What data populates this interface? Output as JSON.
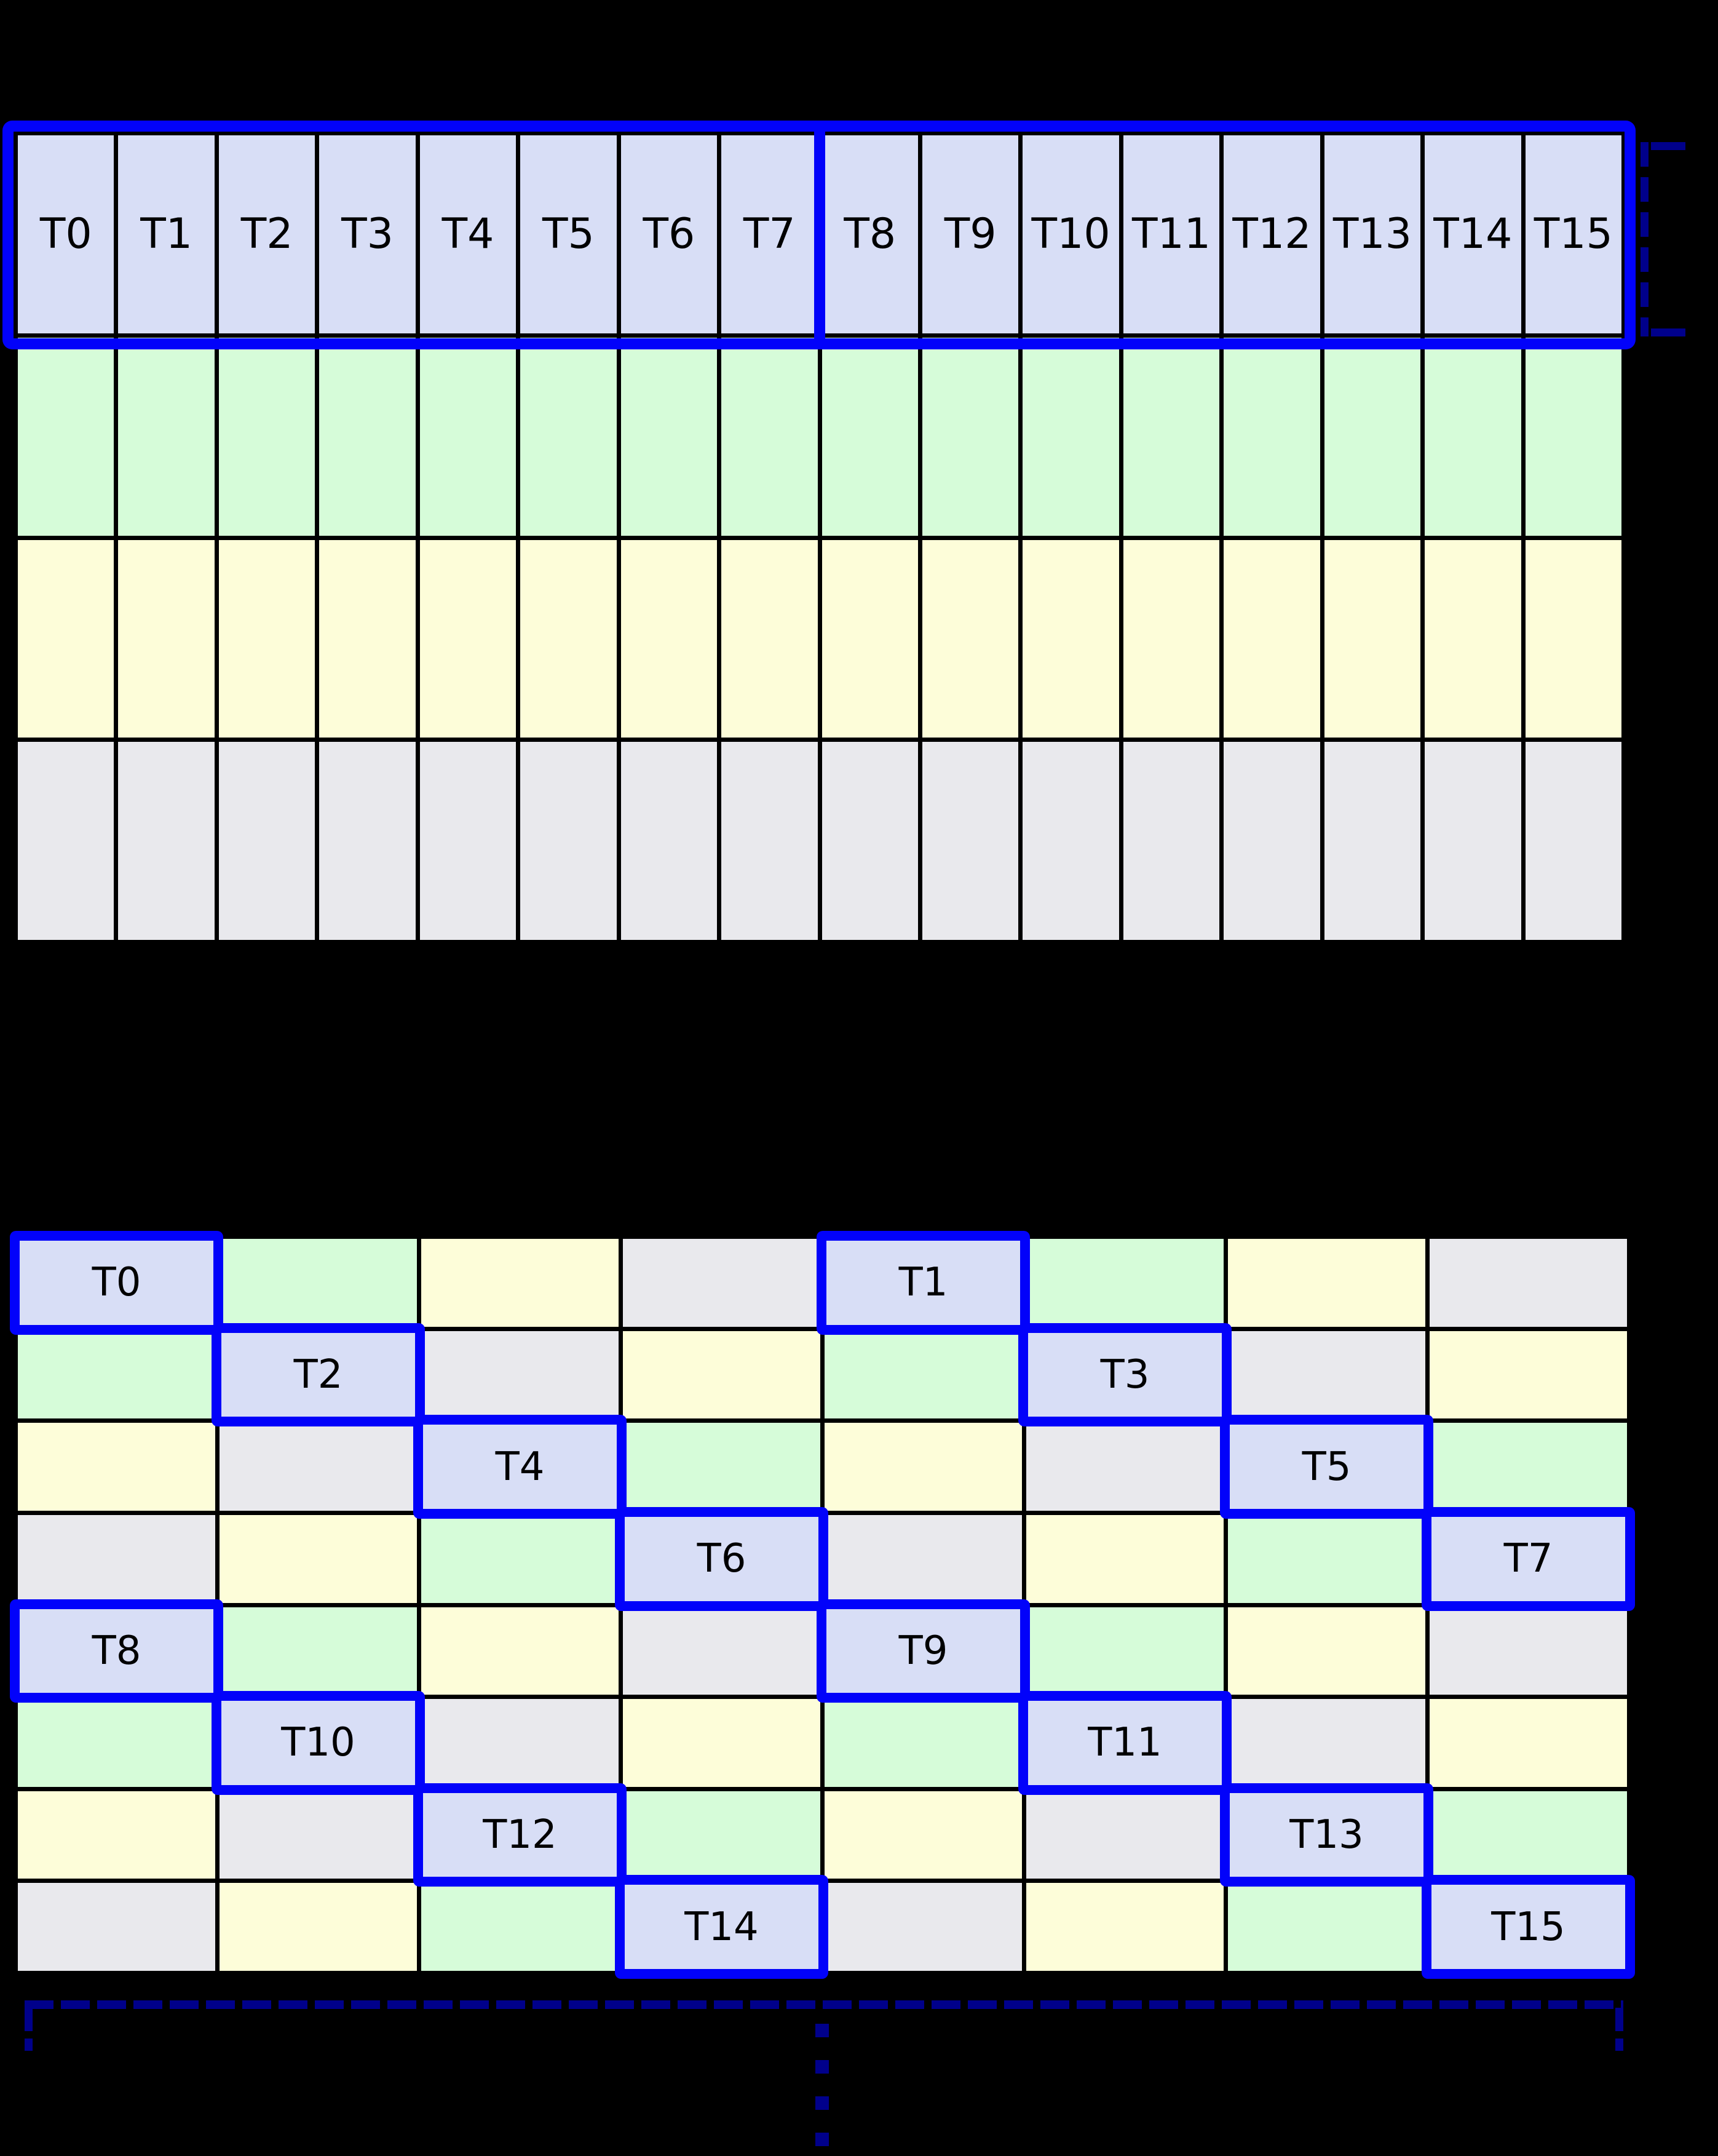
{
  "canvas": {
    "background": "#000000"
  },
  "palette": {
    "thread": "#d8def6",
    "green": "#d6fcd9",
    "yellow": "#fdfdd9",
    "gray": "#e9e9ed",
    "highlight_border": "#0202fa",
    "bracket": "#00008b",
    "grid_line": "#000000",
    "label_color": "#000000"
  },
  "top_grid": {
    "columns": 16,
    "rows": 4,
    "thread_labels": [
      "T0",
      "T1",
      "T2",
      "T3",
      "T4",
      "T5",
      "T6",
      "T7",
      "T8",
      "T9",
      "T10",
      "T11",
      "T12",
      "T13",
      "T14",
      "T15"
    ],
    "row_fills": [
      "thread",
      "green",
      "yellow",
      "gray"
    ],
    "group_split_after_column": 8
  },
  "bottom_grid": {
    "columns": 8,
    "rows": 8,
    "cells": [
      [
        "T0",
        "G",
        "Y",
        "X",
        "T1",
        "G",
        "Y",
        "X"
      ],
      [
        "G",
        "T2",
        "X",
        "Y",
        "G",
        "T3",
        "X",
        "Y"
      ],
      [
        "Y",
        "X",
        "T4",
        "G",
        "Y",
        "X",
        "T5",
        "G"
      ],
      [
        "X",
        "Y",
        "G",
        "T6",
        "X",
        "Y",
        "G",
        "T7"
      ],
      [
        "T8",
        "G",
        "Y",
        "X",
        "T9",
        "G",
        "Y",
        "X"
      ],
      [
        "G",
        "T10",
        "X",
        "Y",
        "G",
        "T11",
        "X",
        "Y"
      ],
      [
        "Y",
        "X",
        "T12",
        "G",
        "Y",
        "X",
        "T13",
        "G"
      ],
      [
        "X",
        "Y",
        "G",
        "T14",
        "X",
        "Y",
        "G",
        "T15"
      ]
    ]
  },
  "decorations": {
    "warp_row_outline": true,
    "warp_transaction_divider": true,
    "right_row_bracket": true,
    "bottom_span_bracket": true,
    "continuation_dots": 4
  }
}
